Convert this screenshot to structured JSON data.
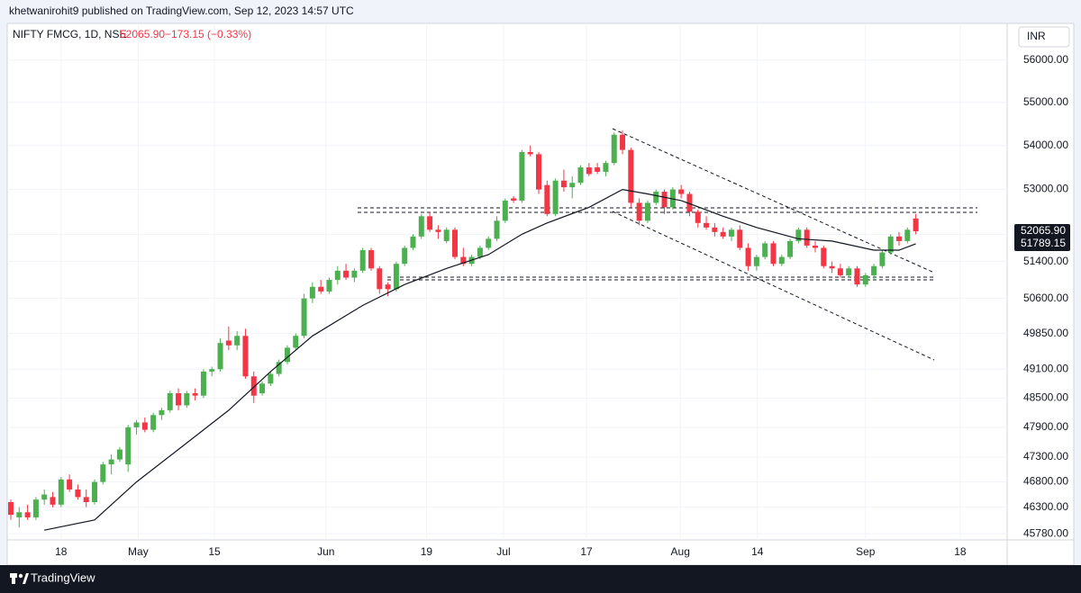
{
  "publisher": "khetwanirohit9 published on TradingView.com, Sep 12, 2023 14:57 UTC",
  "footer": "TradingView",
  "chart_data": {
    "type": "candlestick",
    "title": "NIFTY FMCG, 1D, NSE",
    "change": "−173.15 (−0.33%)",
    "currency": "INR",
    "up_color": "#4caf50",
    "down_color": "#f23645",
    "log": true,
    "grid": true,
    "ylim": [
      45660,
      56880
    ],
    "yticks": [
      {
        "value": 45780,
        "label": "45780.00"
      },
      {
        "value": 46300,
        "label": "46300.00"
      },
      {
        "value": 46800,
        "label": "46800.00"
      },
      {
        "value": 47300,
        "label": "47300.00"
      },
      {
        "value": 47900,
        "label": "47900.00"
      },
      {
        "value": 48500,
        "label": "48500.00"
      },
      {
        "value": 49100,
        "label": "49100.00"
      },
      {
        "value": 49850,
        "label": "49850.00"
      },
      {
        "value": 50600,
        "label": "50600.00"
      },
      {
        "value": 51400,
        "label": "51400.00"
      },
      {
        "value": 52000,
        "label": "52000.00"
      },
      {
        "value": 53000,
        "label": "53000.00"
      },
      {
        "value": 54000,
        "label": "54000.00"
      },
      {
        "value": 55000,
        "label": "55000.00"
      },
      {
        "value": 56000,
        "label": "56000.00"
      }
    ],
    "xlim": [
      -0.43,
      118.9
    ],
    "xticks": [
      {
        "value": 6,
        "label": "18"
      },
      {
        "value": 15.2,
        "label": "May"
      },
      {
        "value": 24.3,
        "label": "15"
      },
      {
        "value": 37.6,
        "label": "Jun"
      },
      {
        "value": 49.6,
        "label": "19"
      },
      {
        "value": 58.8,
        "label": "Jul"
      },
      {
        "value": 68.7,
        "label": "17"
      },
      {
        "value": 79.9,
        "label": "Aug"
      },
      {
        "value": 89.1,
        "label": "14"
      },
      {
        "value": 102,
        "label": "Sep"
      },
      {
        "value": 113.3,
        "label": "18"
      }
    ],
    "candles": [
      [
        46400,
        46450,
        46050,
        46150
      ],
      [
        46100,
        46300,
        45900,
        46200
      ],
      [
        46200,
        46350,
        46050,
        46100
      ],
      [
        46100,
        46500,
        46050,
        46450
      ],
      [
        46450,
        46650,
        46350,
        46550
      ],
      [
        46500,
        46600,
        46300,
        46350
      ],
      [
        46350,
        46900,
        46300,
        46850
      ],
      [
        46850,
        46950,
        46600,
        46650
      ],
      [
        46650,
        46750,
        46450,
        46500
      ],
      [
        46500,
        46650,
        46300,
        46400
      ],
      [
        46400,
        46850,
        46350,
        46800
      ],
      [
        46800,
        47200,
        46750,
        47150
      ],
      [
        47150,
        47350,
        46950,
        47250
      ],
      [
        47250,
        47500,
        47200,
        47450
      ],
      [
        47150,
        47950,
        47000,
        47900
      ],
      [
        47900,
        48050,
        47750,
        48000
      ],
      [
        48000,
        48100,
        47800,
        47850
      ],
      [
        47850,
        48200,
        47800,
        48150
      ],
      [
        48150,
        48300,
        48050,
        48250
      ],
      [
        48250,
        48650,
        48200,
        48600
      ],
      [
        48600,
        48700,
        48250,
        48350
      ],
      [
        48350,
        48650,
        48300,
        48600
      ],
      [
        48600,
        48700,
        48450,
        48550
      ],
      [
        48550,
        49100,
        48500,
        49050
      ],
      [
        49050,
        49150,
        48950,
        49100
      ],
      [
        49100,
        49750,
        49050,
        49650
      ],
      [
        49700,
        50000,
        49500,
        49600
      ],
      [
        49600,
        49900,
        49500,
        49800
      ],
      [
        49800,
        49950,
        48900,
        48950
      ],
      [
        48950,
        49050,
        48400,
        48550
      ],
      [
        48600,
        48850,
        48550,
        48800
      ],
      [
        48800,
        49050,
        48750,
        49000
      ],
      [
        49000,
        49300,
        48950,
        49250
      ],
      [
        49250,
        49600,
        49200,
        49550
      ],
      [
        49550,
        49850,
        49500,
        49800
      ],
      [
        49800,
        50700,
        49750,
        50600
      ],
      [
        50600,
        50950,
        50500,
        50850
      ],
      [
        50850,
        51000,
        50700,
        50750
      ],
      [
        50750,
        51050,
        50700,
        51000
      ],
      [
        51000,
        51300,
        50900,
        51200
      ],
      [
        51200,
        51350,
        51000,
        51050
      ],
      [
        51050,
        51250,
        50950,
        51200
      ],
      [
        51200,
        51700,
        51150,
        51650
      ],
      [
        51650,
        51700,
        51200,
        51250
      ],
      [
        51250,
        51300,
        50700,
        50800
      ],
      [
        50900,
        50950,
        50650,
        50800
      ],
      [
        50800,
        51400,
        50750,
        51350
      ],
      [
        51350,
        51750,
        51300,
        51700
      ],
      [
        51700,
        52000,
        51650,
        51950
      ],
      [
        51950,
        52450,
        51900,
        52400
      ],
      [
        52400,
        52500,
        52050,
        52100
      ],
      [
        52100,
        52200,
        51900,
        52050
      ],
      [
        51850,
        52150,
        51800,
        52100
      ],
      [
        52100,
        52150,
        51450,
        51500
      ],
      [
        51500,
        51700,
        51300,
        51350
      ],
      [
        51350,
        51550,
        51300,
        51500
      ],
      [
        51500,
        51750,
        51450,
        51700
      ],
      [
        51700,
        51950,
        51650,
        51900
      ],
      [
        51900,
        52400,
        51850,
        52300
      ],
      [
        52300,
        52800,
        52250,
        52750
      ],
      [
        52800,
        52850,
        52700,
        52750
      ],
      [
        52750,
        53900,
        52700,
        53850
      ],
      [
        53850,
        54000,
        53750,
        53800
      ],
      [
        53800,
        53850,
        52900,
        53000
      ],
      [
        53100,
        53200,
        52400,
        52450
      ],
      [
        52450,
        53250,
        52400,
        53200
      ],
      [
        53200,
        53450,
        52950,
        53050
      ],
      [
        53050,
        53300,
        52800,
        53150
      ],
      [
        53150,
        53550,
        53100,
        53500
      ],
      [
        53500,
        53600,
        53300,
        53350
      ],
      [
        53500,
        53600,
        53350,
        53400
      ],
      [
        53400,
        53650,
        53300,
        53600
      ],
      [
        53600,
        54300,
        53550,
        54250
      ],
      [
        54250,
        54350,
        53800,
        53900
      ],
      [
        53900,
        53950,
        52600,
        52700
      ],
      [
        52700,
        52800,
        52200,
        52300
      ],
      [
        52300,
        52750,
        52250,
        52700
      ],
      [
        52700,
        53000,
        52650,
        52950
      ],
      [
        52950,
        53000,
        52450,
        52600
      ],
      [
        52600,
        53050,
        52550,
        53000
      ],
      [
        53000,
        53100,
        52800,
        52900
      ],
      [
        52900,
        52950,
        52400,
        52500
      ],
      [
        52500,
        52550,
        52150,
        52250
      ],
      [
        52250,
        52400,
        52100,
        52150
      ],
      [
        52150,
        52250,
        51950,
        52050
      ],
      [
        52050,
        52150,
        51900,
        51950
      ],
      [
        51950,
        52150,
        51850,
        52100
      ],
      [
        52100,
        52200,
        51650,
        51700
      ],
      [
        51700,
        51800,
        51200,
        51300
      ],
      [
        51300,
        51550,
        51200,
        51500
      ],
      [
        51500,
        51850,
        51450,
        51800
      ],
      [
        51800,
        51850,
        51300,
        51350
      ],
      [
        51350,
        51550,
        51300,
        51500
      ],
      [
        51500,
        51900,
        51450,
        51850
      ],
      [
        51850,
        52150,
        51800,
        52100
      ],
      [
        52100,
        52150,
        51700,
        51750
      ],
      [
        51750,
        51850,
        51600,
        51700
      ],
      [
        51700,
        51750,
        51250,
        51300
      ],
      [
        51300,
        51400,
        51150,
        51250
      ],
      [
        51250,
        51350,
        51050,
        51100
      ],
      [
        51100,
        51300,
        51050,
        51250
      ],
      [
        51250,
        51300,
        50850,
        50900
      ],
      [
        50900,
        51150,
        50850,
        51100
      ],
      [
        51100,
        51350,
        51000,
        51300
      ],
      [
        51300,
        51650,
        51250,
        51600
      ],
      [
        51600,
        52000,
        51550,
        51950
      ],
      [
        51950,
        52050,
        51750,
        51850
      ],
      [
        51850,
        52150,
        51800,
        52100
      ],
      [
        52350,
        52450,
        52000,
        52065.9
      ]
    ],
    "ma": {
      "color": "#131722",
      "x": [
        4,
        10,
        15,
        20,
        26,
        31,
        36,
        42,
        47,
        52,
        57,
        61,
        64,
        69,
        73,
        76,
        80,
        85,
        89,
        94,
        98,
        103,
        106,
        108
      ],
      "values": [
        45850,
        46050,
        46800,
        47450,
        48250,
        49050,
        49800,
        50450,
        50900,
        51250,
        51550,
        52000,
        52250,
        52600,
        53000,
        52900,
        52750,
        52400,
        52150,
        51900,
        51850,
        51650,
        51650,
        51789.15
      ]
    },
    "price_labels": [
      {
        "value": 52065.9,
        "label": "52065.90"
      },
      {
        "value": 51789.15,
        "label": "51789.15"
      }
    ]
  }
}
